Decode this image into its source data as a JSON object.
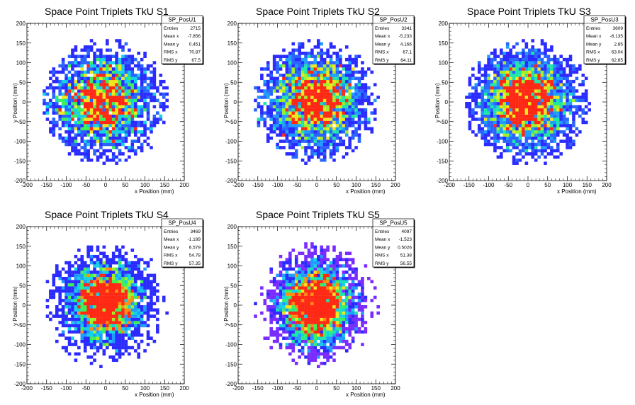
{
  "charts": [
    {
      "title": "Space Point Triplets TkU S1",
      "stats": {
        "name": "SP_PosU1",
        "rows": [
          [
            "Entries",
            "2715"
          ],
          [
            "Mean x",
            "-7.856"
          ],
          [
            "Mean y",
            "0.451"
          ],
          [
            "RMS x",
            "70.87"
          ],
          [
            "RMS y",
            "67.5"
          ]
        ]
      }
    },
    {
      "title": "Space Point Triplets TkU S2",
      "stats": {
        "name": "SP_PosU2",
        "rows": [
          [
            "Entries",
            "3341"
          ],
          [
            "Mean x",
            "-5.233"
          ],
          [
            "Mean y",
            "4.166"
          ],
          [
            "RMS x",
            "67.1"
          ],
          [
            "RMS y",
            "64.11"
          ]
        ]
      }
    },
    {
      "title": "Space Point Triplets TkU S3",
      "stats": {
        "name": "SP_PosU3",
        "rows": [
          [
            "Entries",
            "3609"
          ],
          [
            "Mean x",
            "-6.135"
          ],
          [
            "Mean y",
            "2.85"
          ],
          [
            "RMS x",
            "63.04"
          ],
          [
            "RMS y",
            "62.85"
          ]
        ]
      }
    },
    {
      "title": "Space Point Triplets TkU S4",
      "stats": {
        "name": "SP_PosU4",
        "rows": [
          [
            "Entries",
            "3469"
          ],
          [
            "Mean x",
            "-1.189"
          ],
          [
            "Mean y",
            "6.579"
          ],
          [
            "RMS x",
            "54.78"
          ],
          [
            "RMS y",
            "57.35"
          ]
        ]
      }
    },
    {
      "title": "Space Point Triplets TkU S5",
      "stats": {
        "name": "SP_PosU5",
        "rows": [
          [
            "Entries",
            "4097"
          ],
          [
            "Mean x",
            "-1.523"
          ],
          [
            "Mean y",
            "0.5026"
          ],
          [
            "RMS x",
            "51.38"
          ],
          [
            "RMS y",
            "56.55"
          ]
        ]
      }
    }
  ],
  "axes": {
    "xlabel": "x Position (mm)",
    "ylabel": "y Position (mm)",
    "xlim": [
      -200,
      200
    ],
    "ylim": [
      -200,
      200
    ],
    "ticks": [
      -200,
      -150,
      -100,
      -50,
      0,
      50,
      100,
      150,
      200
    ]
  },
  "chart_data": [
    {
      "type": "heatmap",
      "title": "Space Point Triplets TkU S1",
      "xlabel": "x Position (mm)",
      "ylabel": "y Position (mm)",
      "xlim": [
        -200,
        200
      ],
      "ylim": [
        -200,
        200
      ],
      "bin_width": 8,
      "entries": 2715,
      "mean_x": -7.856,
      "mean_y": 0.451,
      "rms_x": 70.87,
      "rms_y": 67.5,
      "extent_radius": 160,
      "max_bin_count": 6
    },
    {
      "type": "heatmap",
      "title": "Space Point Triplets TkU S2",
      "xlabel": "x Position (mm)",
      "ylabel": "y Position (mm)",
      "xlim": [
        -200,
        200
      ],
      "ylim": [
        -200,
        200
      ],
      "bin_width": 8,
      "entries": 3341,
      "mean_x": -5.233,
      "mean_y": 4.166,
      "rms_x": 67.1,
      "rms_y": 64.11,
      "extent_radius": 160,
      "max_bin_count": 7
    },
    {
      "type": "heatmap",
      "title": "Space Point Triplets TkU S3",
      "xlabel": "x Position (mm)",
      "ylabel": "y Position (mm)",
      "xlim": [
        -200,
        200
      ],
      "ylim": [
        -200,
        200
      ],
      "bin_width": 8,
      "entries": 3609,
      "mean_x": -6.135,
      "mean_y": 2.85,
      "rms_x": 63.04,
      "rms_y": 62.85,
      "extent_radius": 160,
      "max_bin_count": 7
    },
    {
      "type": "heatmap",
      "title": "Space Point Triplets TkU S4",
      "xlabel": "x Position (mm)",
      "ylabel": "y Position (mm)",
      "xlim": [
        -200,
        200
      ],
      "ylim": [
        -200,
        200
      ],
      "bin_width": 8,
      "entries": 3469,
      "mean_x": -1.189,
      "mean_y": 6.579,
      "rms_x": 54.78,
      "rms_y": 57.35,
      "extent_radius": 160,
      "max_bin_count": 8
    },
    {
      "type": "heatmap",
      "title": "Space Point Triplets TkU S5",
      "xlabel": "x Position (mm)",
      "ylabel": "y Position (mm)",
      "xlim": [
        -200,
        200
      ],
      "ylim": [
        -200,
        200
      ],
      "bin_width": 8,
      "entries": 4097,
      "mean_x": -1.523,
      "mean_y": 0.5026,
      "rms_x": 51.38,
      "rms_y": 56.55,
      "extent_radius": 160,
      "max_bin_count": 9
    }
  ],
  "palette": [
    "#7a2cff",
    "#2b2bff",
    "#2a64ff",
    "#1f9dff",
    "#14d2e6",
    "#1ee6a8",
    "#3cf05a",
    "#a0f028",
    "#f0e61e",
    "#ff8c14",
    "#ff2814"
  ]
}
